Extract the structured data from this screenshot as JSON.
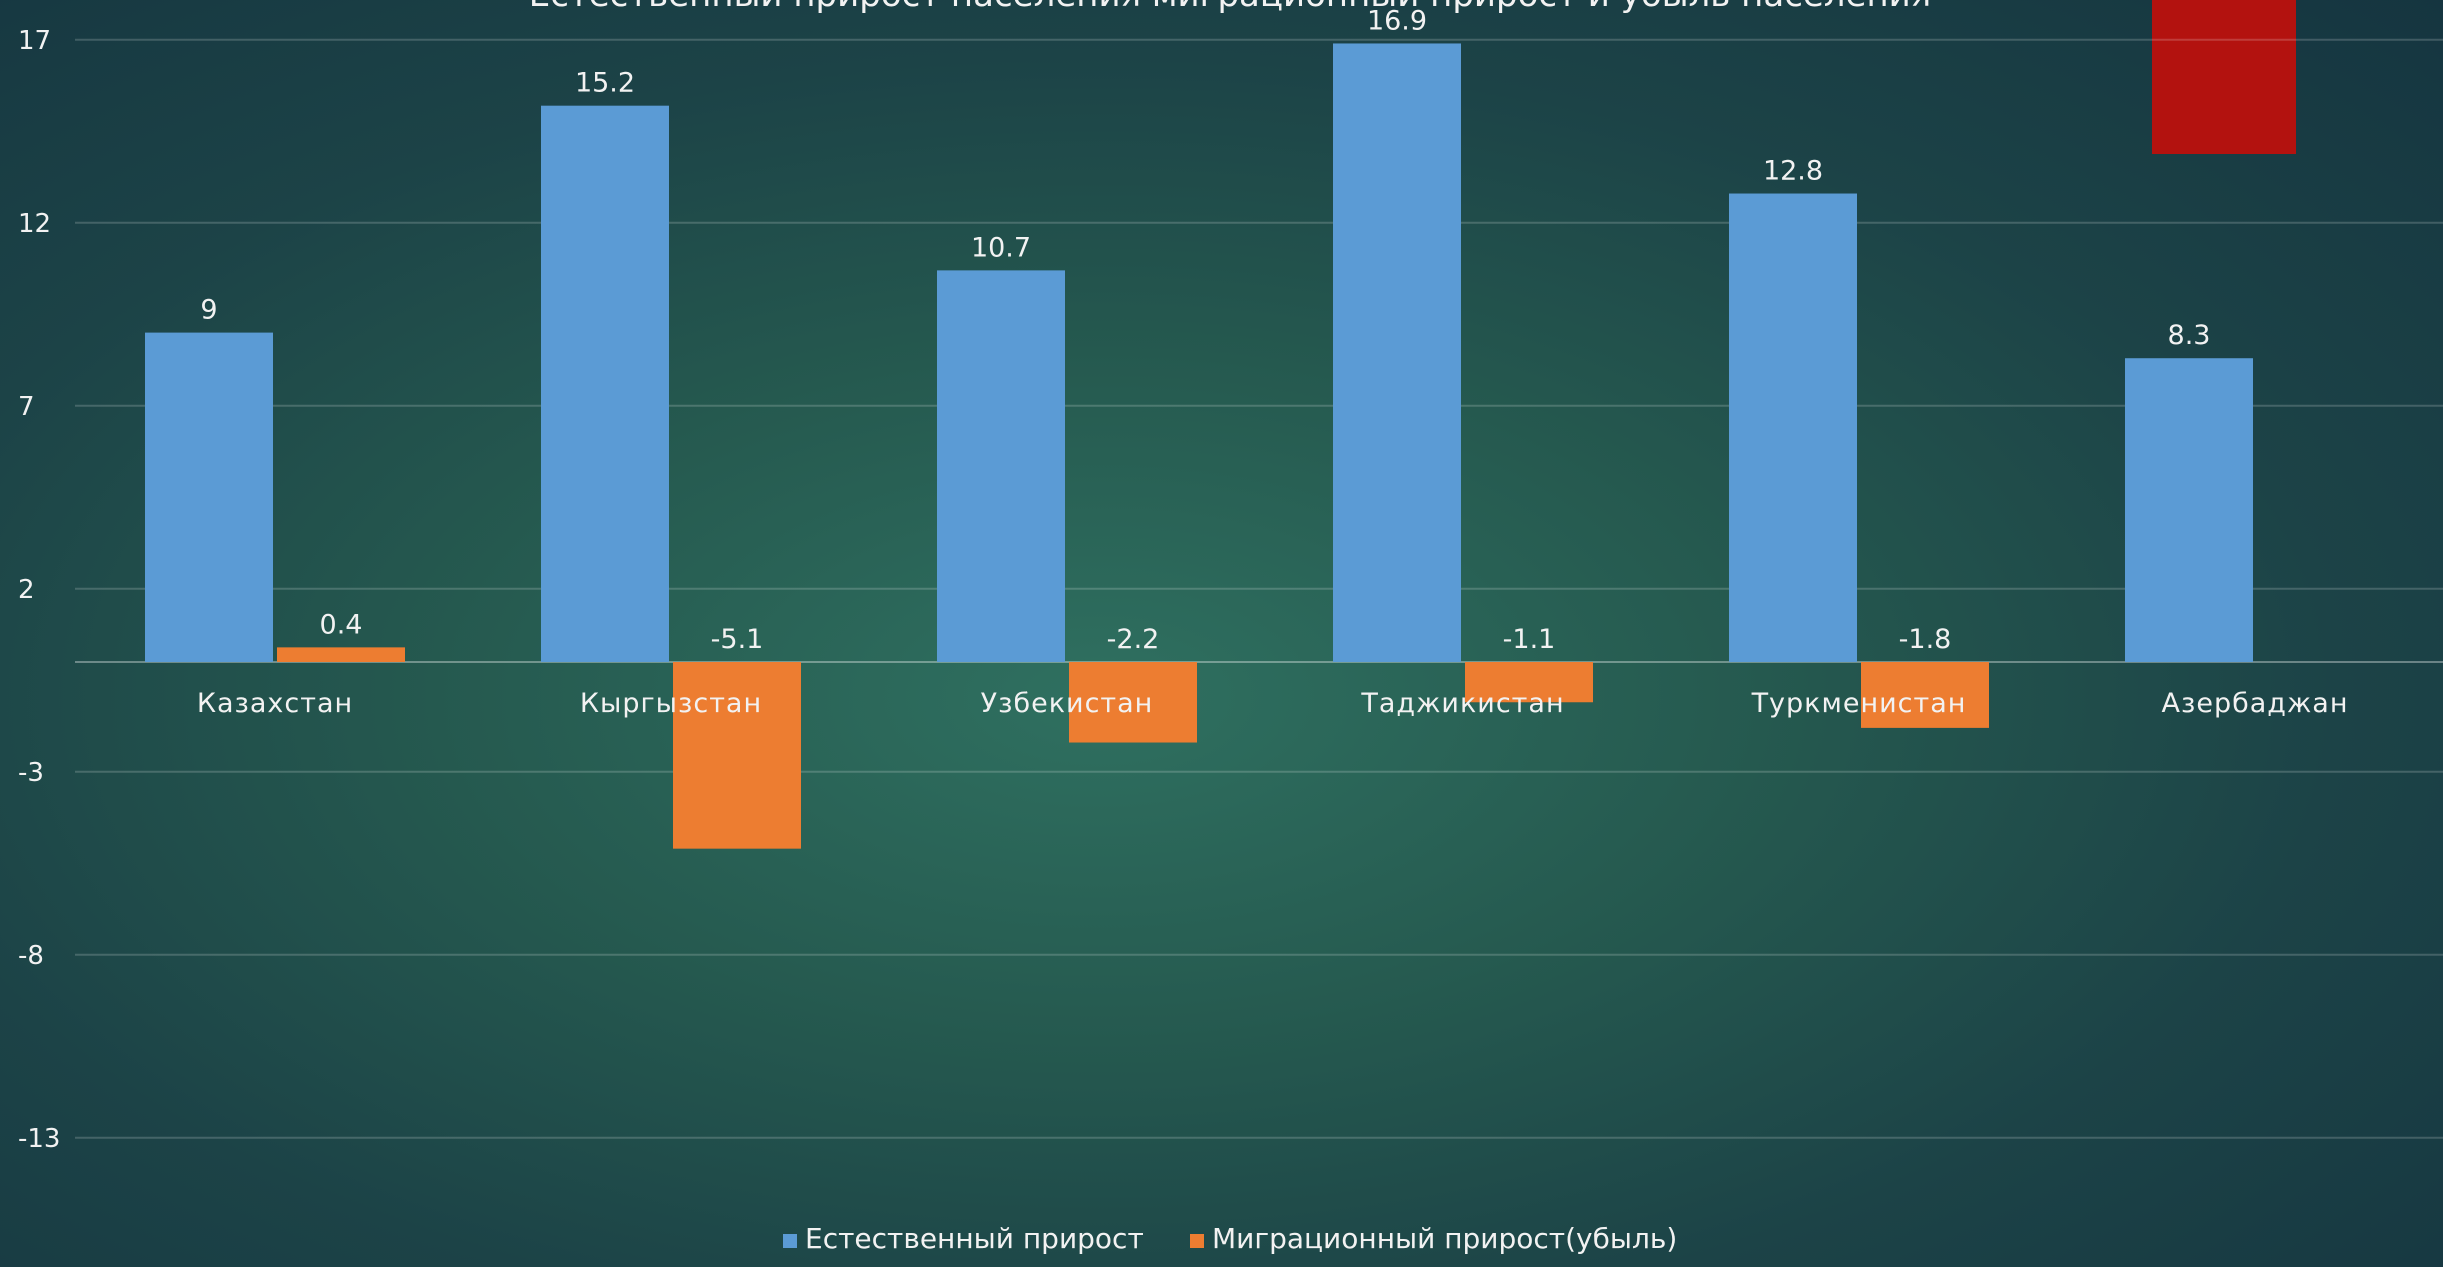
{
  "chart_data": {
    "type": "bar",
    "title": "Естественный прирост населения миграционный прирост и убыль населения",
    "categories": [
      "Казахстан",
      "Кыргызстан",
      "Узбекистан",
      "Таджикистан",
      "Туркменистан",
      "Азербаджан"
    ],
    "series": [
      {
        "name": "Естественный прирост",
        "values": [
          9,
          15.2,
          10.7,
          16.9,
          12.8,
          8.3
        ],
        "color": "#5b9bd5"
      },
      {
        "name": "Миграционный прирост(убыль)",
        "values": [
          0.4,
          -5.1,
          -2.2,
          -1.1,
          -1.8,
          null
        ],
        "color": "#ed7d31"
      }
    ],
    "y_ticks": [
      17,
      12,
      7,
      2,
      -3,
      -8,
      -13
    ],
    "ylim": [
      -15,
      18
    ],
    "grid": true,
    "legend_position": "bottom",
    "xlabel": "",
    "ylabel": ""
  },
  "decor": {
    "accent_color": "#b3120f"
  }
}
